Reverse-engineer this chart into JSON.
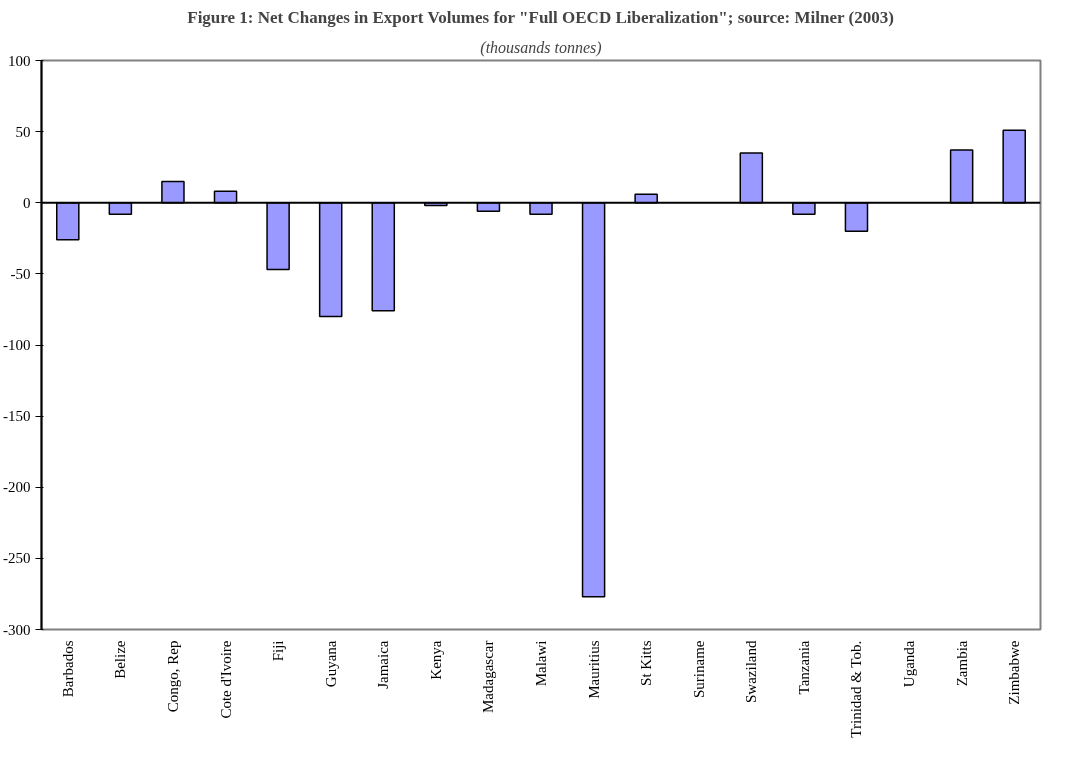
{
  "chart_data": {
    "type": "bar",
    "title": "Figure 1: Net Changes in Export Volumes for \"Full OECD Liberalization\"; source: Milner (2003)",
    "subtitle": "(thousands tonnes)",
    "categories": [
      "Barbados",
      "Belize",
      "Congo, Rep",
      "Cote d'Ivoire",
      "Fiji",
      "Guyana",
      "Jamaica",
      "Kenya",
      "Madagascar",
      "Malawi",
      "Mauritius",
      "St Kitts",
      "Suriname",
      "Swaziland",
      "Tanzania",
      "Trinidad & Tob.",
      "Uganda",
      "Zambia",
      "Zimbabwe"
    ],
    "values": [
      -26,
      -8,
      15,
      8,
      -47,
      -80,
      -76,
      -2,
      -6,
      -8,
      -277,
      6,
      null,
      35,
      -8,
      -20,
      null,
      37,
      51
    ],
    "color": "#9999ff",
    "ylim": [
      -300,
      100
    ],
    "yticks": [
      -300,
      -250,
      -200,
      -150,
      -100,
      -50,
      0,
      50,
      100
    ]
  }
}
